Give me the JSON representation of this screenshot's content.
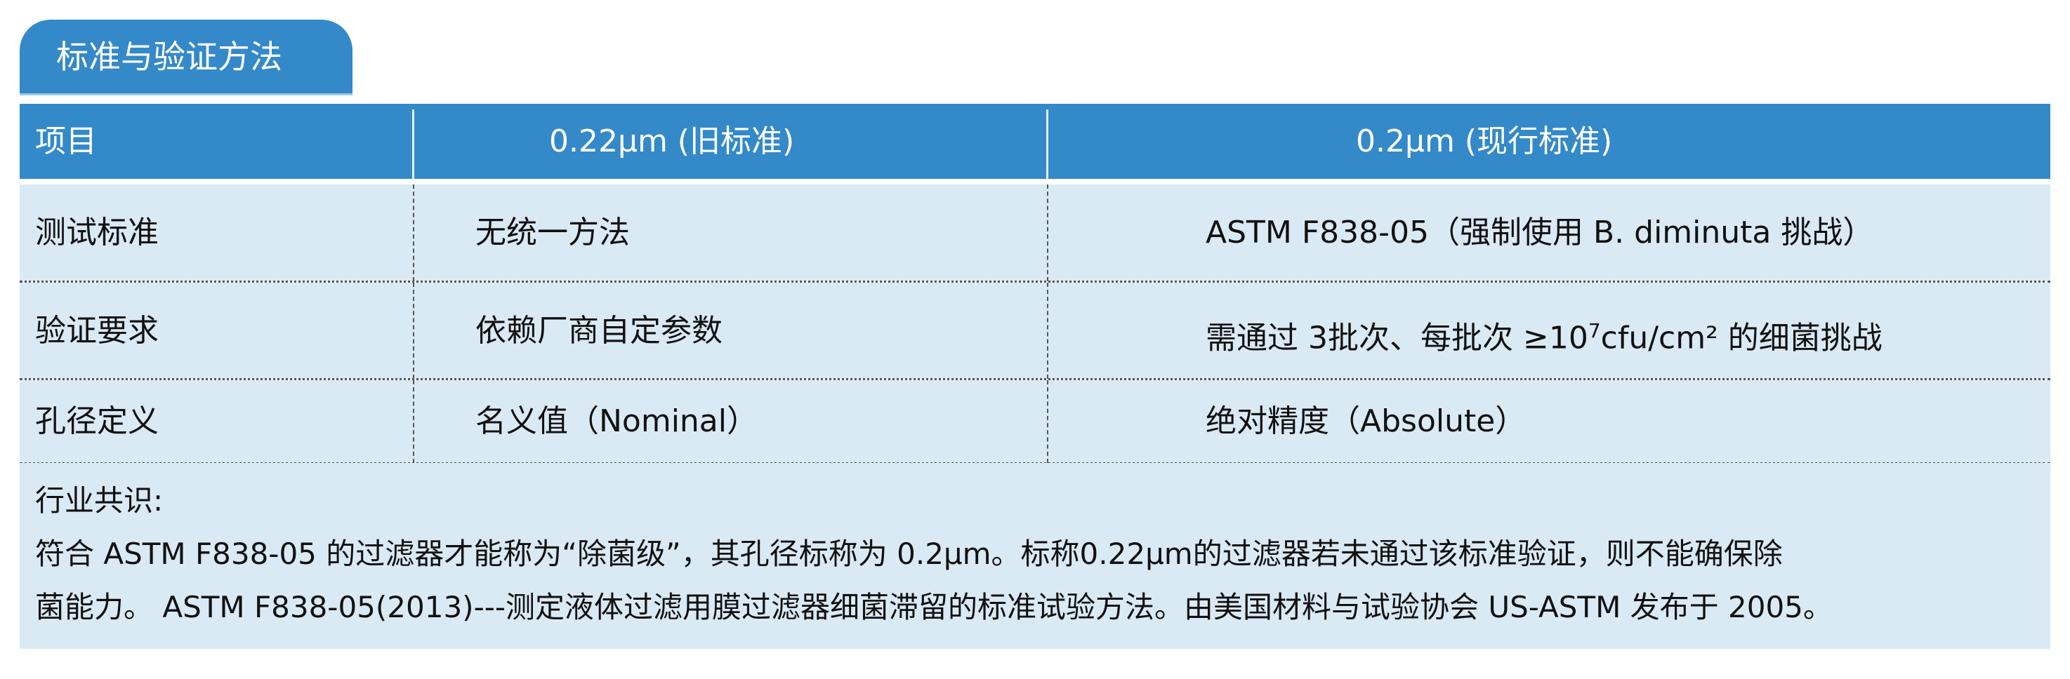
{
  "section_title": "标准与验证方法",
  "colors": {
    "header_blue": "#3489C9",
    "row_bg": "#DAEAF5"
  },
  "table": {
    "headers": [
      "项目",
      "0.22μm (旧标准)",
      "0.2μm (现行标准)"
    ],
    "rows": [
      {
        "item": "测试标准",
        "old": "无统一方法",
        "new": "ASTM F838-05（强制使用 B. diminuta 挑战）"
      },
      {
        "item": "验证要求",
        "old": "依赖厂商自定参数",
        "new_pre": "需通过 3批次、每批次 ≥10",
        "new_sup": "7",
        "new_post": "cfu/cm² 的细菌挑战"
      },
      {
        "item": "孔径定义",
        "old": "名义值（Nominal）",
        "new": "绝对精度（Absolute）"
      }
    ]
  },
  "footer": {
    "label": "行业共识:",
    "line1": "符合 ASTM F838-05 的过滤器才能称为“除菌级”，其孔径标称为 0.2μm。标称0.22μm的过滤器若未通过该标准验证，则不能确保除",
    "line2": "菌能力。 ASTM F838-05(2013)---测定液体过滤用膜过滤器细菌滞留的标准试验方法。由美国材料与试验协会 US-ASTM 发布于 2005。"
  }
}
